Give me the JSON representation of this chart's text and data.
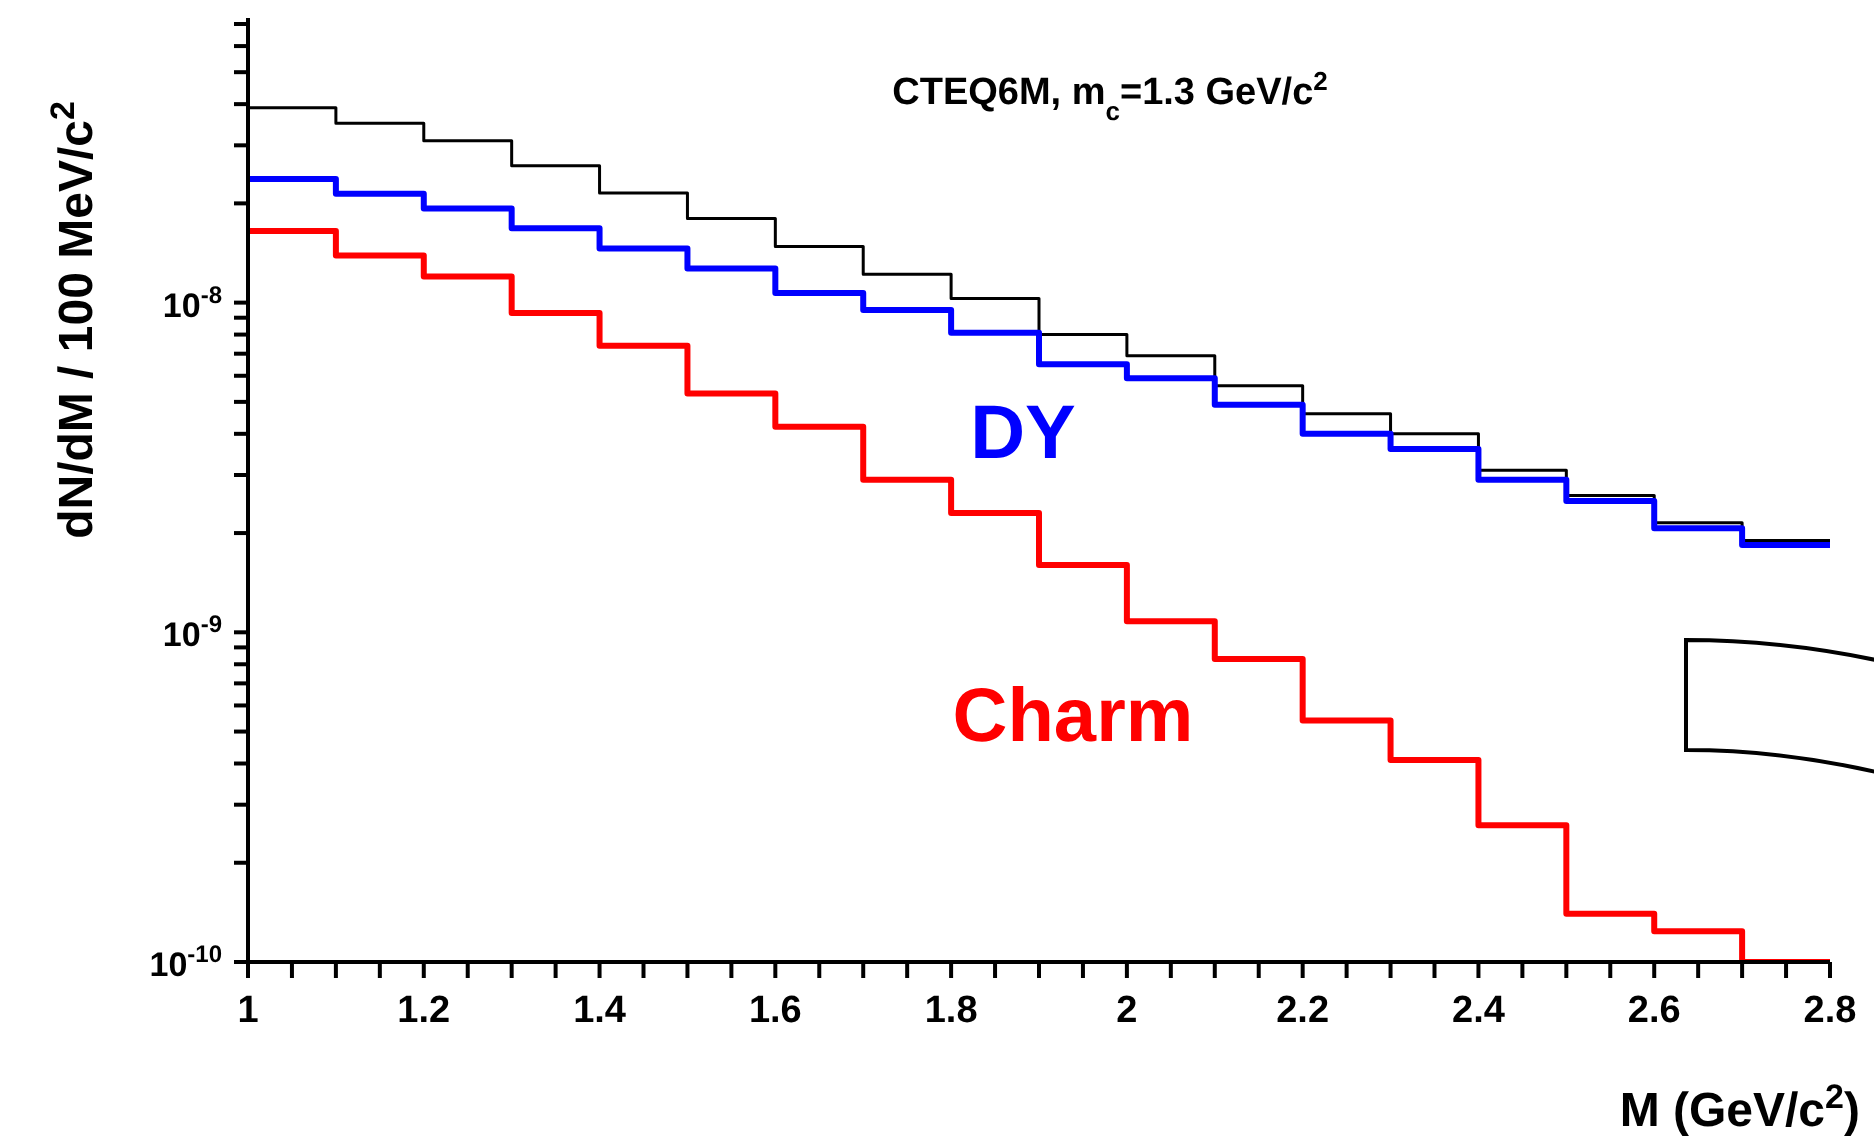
{
  "chart_data": {
    "type": "histogram",
    "title": "CTEQ6M, m$_{c}$=1.3 GeV/c$^{2}$",
    "xlabel": "M (GeV/c$^{2}$)",
    "ylabel": "dN/dM / 100 MeV/c$^{2}$",
    "log": "y",
    "bins": [
      1.0,
      1.1,
      1.2,
      1.3,
      1.4,
      1.5,
      1.6,
      1.7,
      1.8,
      1.9,
      2.0,
      2.1,
      2.2,
      2.3,
      2.4,
      2.5,
      2.6,
      2.7,
      2.8
    ],
    "series": [
      {
        "color": "#000000",
        "values": [
          3.9e-08,
          3.5e-08,
          3.1e-08,
          2.6e-08,
          2.15e-08,
          1.8e-08,
          1.48e-08,
          1.22e-08,
          1.03e-08,
          8e-09,
          6.9e-09,
          5.6e-09,
          4.6e-09,
          4e-09,
          3.1e-09,
          2.6e-09,
          2.15e-09,
          1.9e-09
        ]
      },
      {
        "name": "DY",
        "color": "#0000ff",
        "values": [
          2.37e-08,
          2.14e-08,
          1.93e-08,
          1.68e-08,
          1.46e-08,
          1.27e-08,
          1.07e-08,
          9.5e-09,
          8.1e-09,
          6.5e-09,
          5.9e-09,
          4.9e-09,
          4e-09,
          3.6e-09,
          2.9e-09,
          2.5e-09,
          2.07e-09,
          1.84e-09
        ]
      },
      {
        "name": "Charm",
        "color": "#ff0000",
        "values": [
          1.65e-08,
          1.39e-08,
          1.2e-08,
          9.3e-09,
          7.4e-09,
          5.3e-09,
          4.2e-09,
          2.9e-09,
          2.3e-09,
          1.6e-09,
          1.08e-09,
          8.3e-10,
          5.4e-10,
          4.1e-10,
          2.6e-10,
          1.4e-10,
          1.24e-10,
          1e-10
        ]
      }
    ],
    "xlim": [
      1,
      2.8
    ],
    "xticks": [
      1,
      {
        "value": 1.05,
        "label": null
      },
      {
        "value": 1.1,
        "label": null
      },
      {
        "value": 1.15,
        "label": null
      },
      1.2,
      {
        "value": 1.25,
        "label": null
      },
      {
        "value": 1.3,
        "label": null
      },
      {
        "value": 1.35,
        "label": null
      },
      1.4,
      {
        "value": 1.45,
        "label": null
      },
      {
        "value": 1.5,
        "label": null
      },
      {
        "value": 1.55,
        "label": null
      },
      1.6,
      {
        "value": 1.65,
        "label": null
      },
      {
        "value": 1.7,
        "label": null
      },
      {
        "value": 1.75,
        "label": null
      },
      1.8,
      {
        "value": 1.85,
        "label": null
      },
      {
        "value": 1.9,
        "label": null
      },
      {
        "value": 1.95,
        "label": null
      },
      2,
      {
        "value": 2.05,
        "label": null
      },
      {
        "value": 2.1,
        "label": null
      },
      {
        "value": 2.15,
        "label": null
      },
      2.2,
      {
        "value": 2.25,
        "label": null
      },
      {
        "value": 2.3,
        "label": null
      },
      {
        "value": 2.35,
        "label": null
      },
      2.4,
      {
        "value": 2.45,
        "label": null
      },
      {
        "value": 2.5,
        "label": null
      },
      {
        "value": 2.55,
        "label": null
      },
      2.6,
      {
        "value": 2.65,
        "label": null
      },
      {
        "value": 2.7,
        "label": null
      },
      {
        "value": 2.75,
        "label": null
      },
      2.8
    ],
    "ylim": [
      1e-10,
      7.3e-08
    ],
    "yticks": [
      {
        "value": 1e-10,
        "label": "10$^{-10}$"
      },
      {
        "value": 2e-10,
        "label": null
      },
      {
        "value": 3e-10,
        "label": null
      },
      {
        "value": 4e-10,
        "label": null
      },
      {
        "value": 5e-10,
        "label": null
      },
      {
        "value": 6e-10,
        "label": null
      },
      {
        "value": 7e-10,
        "label": null
      },
      {
        "value": 8e-10,
        "label": null
      },
      {
        "value": 9e-10,
        "label": null
      },
      {
        "value": 1e-09,
        "label": "10$^{-9}$"
      },
      {
        "value": 2e-09,
        "label": null
      },
      {
        "value": 3e-09,
        "label": null
      },
      {
        "value": 4e-09,
        "label": null
      },
      {
        "value": 5e-09,
        "label": null
      },
      {
        "value": 6e-09,
        "label": null
      },
      {
        "value": 7e-09,
        "label": null
      },
      {
        "value": 8e-09,
        "label": null
      },
      {
        "value": 9e-09,
        "label": null
      },
      {
        "value": 1e-08,
        "label": "10$^{-8}$"
      },
      {
        "value": 2e-08,
        "label": null
      },
      {
        "value": 3e-08,
        "label": null
      },
      {
        "value": 4e-08,
        "label": null
      },
      {
        "value": 5e-08,
        "label": null
      },
      {
        "value": 6e-08,
        "label": null
      },
      {
        "value": 7e-08,
        "label": null
      }
    ],
    "grid": false,
    "legend": false
  }
}
